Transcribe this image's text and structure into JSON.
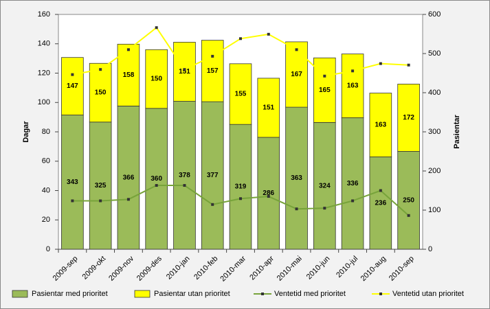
{
  "chart_data": {
    "type": "combo",
    "categories": [
      "2009-sep",
      "2009-okt",
      "2009-nov",
      "2009-des",
      "2010-jan",
      "2010-feb",
      "2010-mar",
      "2010-apr",
      "2010-mai",
      "2010-jun",
      "2010-jul",
      "2010-aug",
      "2010-sep"
    ],
    "y_label": "Dagar",
    "y2_label": "Pasientar",
    "ylim": [
      0,
      160
    ],
    "yticks": [
      0,
      20,
      40,
      60,
      80,
      100,
      120,
      140,
      160
    ],
    "y2lim": [
      0,
      600
    ],
    "y2ticks": [
      0,
      100,
      200,
      300,
      400,
      500,
      600
    ],
    "stacked": true,
    "series": [
      {
        "name": "Pasientar med prioritet",
        "type": "bar",
        "axis": "y2",
        "color": "#9bbb59",
        "values": [
          343,
          325,
          366,
          360,
          378,
          377,
          319,
          286,
          363,
          324,
          336,
          236,
          250
        ]
      },
      {
        "name": "Pasientar utan prioritet",
        "type": "bar",
        "axis": "y2",
        "color": "#ffff00",
        "values": [
          147,
          150,
          158,
          150,
          151,
          157,
          155,
          151,
          167,
          165,
          163,
          163,
          172
        ]
      },
      {
        "name": "Ventetid med prioritet",
        "type": "line",
        "color": "#77a33a",
        "values": [
          33,
          33,
          34,
          43.5,
          43.5,
          30.5,
          34.5,
          36,
          27.5,
          28,
          33,
          40,
          23
        ]
      },
      {
        "name": "Ventetid utan prioritet",
        "type": "line",
        "color": "#ffff00",
        "values": [
          119,
          122.5,
          136,
          151,
          122.5,
          131.5,
          143.5,
          146.5,
          136,
          118,
          121.5,
          126.5,
          125.5
        ]
      }
    ]
  }
}
